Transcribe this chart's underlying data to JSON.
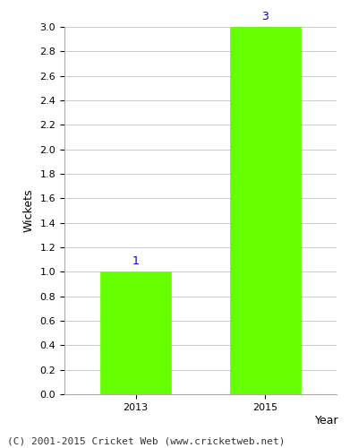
{
  "categories": [
    "2013",
    "2015"
  ],
  "values": [
    1,
    3
  ],
  "bar_color": "#66ff00",
  "bar_edgecolor": "#66ff00",
  "title": "",
  "xlabel": "Year",
  "ylabel": "Wickets",
  "ylim": [
    0,
    3.0
  ],
  "yticks": [
    0.0,
    0.2,
    0.4,
    0.6,
    0.8,
    1.0,
    1.2,
    1.4,
    1.6,
    1.8,
    2.0,
    2.2,
    2.4,
    2.6,
    2.8,
    3.0
  ],
  "annotation_color": "#0000cc",
  "annotation_fontsize": 9,
  "axis_label_fontsize": 9,
  "tick_fontsize": 8,
  "footer_text": "(C) 2001-2015 Cricket Web (www.cricketweb.net)",
  "footer_fontsize": 8,
  "background_color": "#ffffff",
  "grid_color": "#cccccc",
  "bar_width": 0.55
}
